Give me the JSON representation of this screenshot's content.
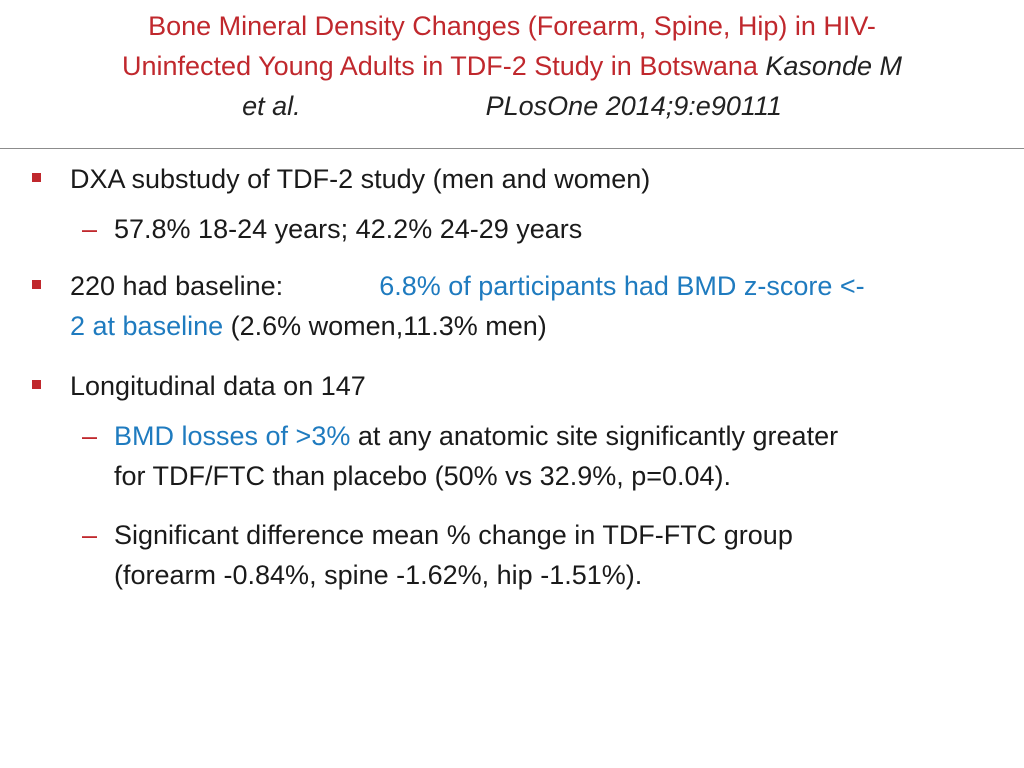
{
  "title": {
    "main_line1": "Bone Mineral Density Changes (Forearm, Spine, Hip) in  HIV-",
    "main_line2": "Uninfected Young Adults in TDF-2 Study in Botswana ",
    "author": "Kasonde M",
    "author_line3": "et al.",
    "citation": "PLosOne 2014;9:e90111"
  },
  "colors": {
    "title": "#c0282d",
    "bullet": "#c0282d",
    "highlight": "#1f7bbf"
  },
  "bullets": {
    "b1": {
      "text": "DXA substudy of TDF-2 study (men and  women)",
      "sub1": "57.8% 18-24 years; 42.2% 24-29 years"
    },
    "b2": {
      "text": "220 had baseline:",
      "highlight_line1": "6.8% of participants had BMD  z-score <-",
      "highlight_line2": "2 at baseline",
      "rest": " (2.6% women,11.3% men)"
    },
    "b3": {
      "text": "Longitudinal data on 147",
      "sub1_highlight": "BMD losses of >3%",
      "sub1_rest": " at any anatomic site significantly  greater",
      "sub1_line2": "for TDF/FTC than placebo (50% vs 32.9%,  p=0.04).",
      "sub2_line1": "Significant difference mean % change in TDF-FTC  group",
      "sub2_line2": "(forearm -0.84%, spine -1.62%, hip  -1.51%)."
    }
  },
  "icons": {
    "bullet": "square-bullet-icon",
    "dash": "dash-bullet-icon",
    "dash_char": "–"
  }
}
